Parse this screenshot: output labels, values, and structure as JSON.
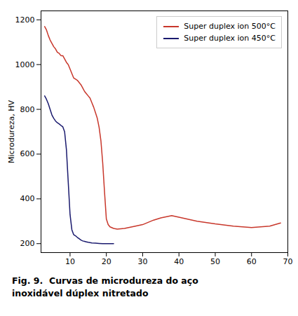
{
  "chart_data": {
    "type": "line",
    "ylabel": "Microdureza, HV",
    "caption": [
      "Fig. 9.  Curvas de microdureza do aço",
      "inoxidável dúplex nitretado"
    ],
    "xlim": [
      2,
      70
    ],
    "ylim": [
      160,
      1240
    ],
    "xticks": [
      10,
      20,
      30,
      40,
      50,
      60,
      70
    ],
    "yticks": [
      200,
      400,
      600,
      800,
      1000,
      1200
    ],
    "grid": false,
    "legend": "upper right",
    "series": [
      {
        "name": "Super duplex ion 500°C",
        "color": "#c8372b",
        "x": [
          3.0,
          3.5,
          4.0,
          4.5,
          5.0,
          5.5,
          6.0,
          6.5,
          7.0,
          7.5,
          8.0,
          8.5,
          9.0,
          9.5,
          10.0,
          10.5,
          11.0,
          11.5,
          12.0,
          12.5,
          13.0,
          13.5,
          14.0,
          14.5,
          15.0,
          15.5,
          16.0,
          16.5,
          17.0,
          17.5,
          18.0,
          18.5,
          19.0,
          19.5,
          20.0,
          20.5,
          21.0,
          22.0,
          23.0,
          25.0,
          28.0,
          30.0,
          33.0,
          35.0,
          38.0,
          40.0,
          45.0,
          50.0,
          55.0,
          60.0,
          65.0,
          68.0
        ],
        "values": [
          1170,
          1155,
          1130,
          1110,
          1095,
          1080,
          1070,
          1055,
          1050,
          1040,
          1040,
          1025,
          1010,
          1000,
          980,
          960,
          940,
          935,
          930,
          920,
          910,
          895,
          880,
          870,
          860,
          850,
          830,
          810,
          785,
          760,
          720,
          660,
          560,
          430,
          310,
          285,
          275,
          268,
          265,
          268,
          278,
          285,
          305,
          315,
          325,
          318,
          300,
          288,
          278,
          272,
          278,
          292
        ]
      },
      {
        "name": "Super duplex ion 450°C",
        "color": "#1a1a6e",
        "x": [
          3.0,
          3.5,
          4.0,
          4.5,
          5.0,
          5.5,
          6.0,
          6.5,
          7.0,
          7.5,
          8.0,
          8.5,
          9.0,
          9.5,
          10.0,
          10.5,
          11.0,
          11.5,
          12.0,
          12.5,
          13.0,
          13.5,
          14.0,
          14.5,
          15.0,
          16.0,
          17.0,
          18.0,
          19.0,
          20.0,
          21.0,
          22.0
        ],
        "values": [
          860,
          845,
          825,
          800,
          775,
          760,
          748,
          740,
          735,
          728,
          722,
          700,
          620,
          475,
          330,
          262,
          240,
          235,
          228,
          222,
          216,
          212,
          210,
          208,
          206,
          203,
          202,
          201,
          200,
          200,
          200,
          200
        ]
      }
    ]
  }
}
